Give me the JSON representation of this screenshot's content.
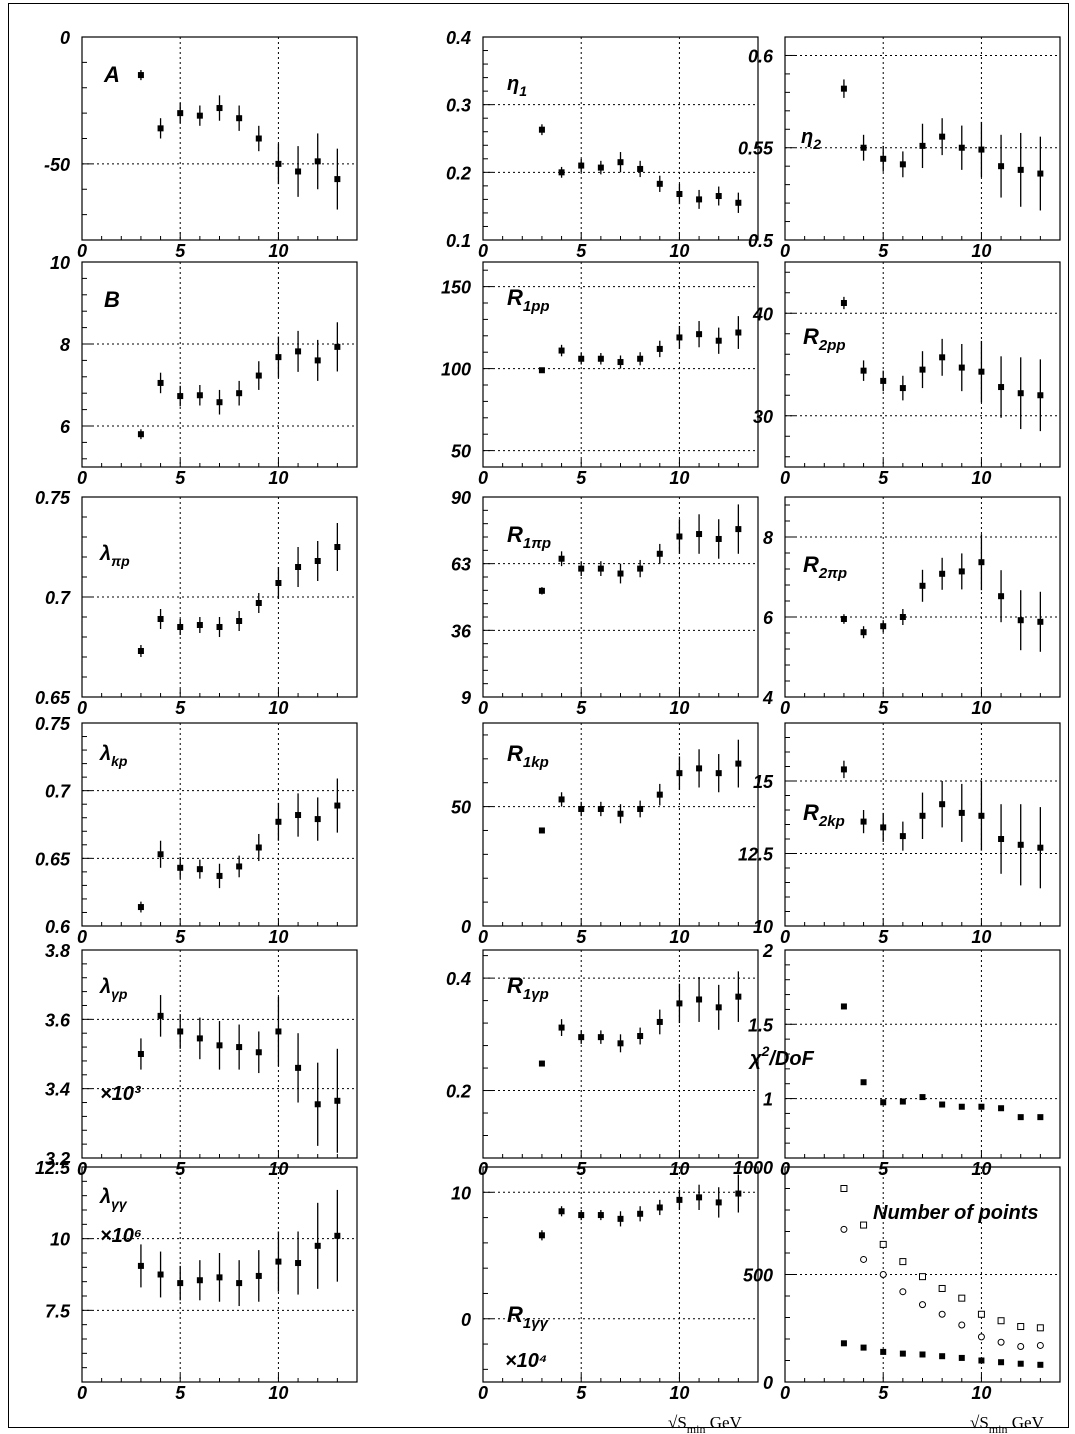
{
  "x_axis": {
    "range": [
      0,
      14
    ],
    "ticks": [
      0,
      5,
      10
    ],
    "label": "√S_min GeV"
  },
  "chart_data": [
    {
      "type": "scatter",
      "label": "A",
      "ylim": [
        -80,
        0
      ],
      "yticks": [
        "0",
        "-50"
      ],
      "ytick_values": [
        0,
        -50
      ],
      "x": [
        3,
        4,
        5,
        6,
        7,
        8,
        9,
        10,
        11,
        12,
        13
      ],
      "y": [
        -15,
        -36,
        -30,
        -31,
        -28,
        -32,
        -40,
        -50,
        -53,
        -49,
        -56
      ],
      "err": [
        2,
        4,
        4,
        4,
        5,
        5,
        5,
        8,
        10,
        11,
        12
      ]
    },
    {
      "type": "scatter",
      "label": "η1",
      "ylim": [
        0.1,
        0.4
      ],
      "yticks": [
        "0.4",
        "0.3",
        "0.2",
        "0.1"
      ],
      "ytick_values": [
        0.4,
        0.3,
        0.2,
        0.1
      ],
      "x": [
        3,
        4,
        5,
        6,
        7,
        8,
        9,
        10,
        11,
        12,
        13
      ],
      "y": [
        0.263,
        0.2,
        0.21,
        0.207,
        0.215,
        0.205,
        0.183,
        0.168,
        0.16,
        0.165,
        0.155
      ],
      "err": [
        0.008,
        0.008,
        0.01,
        0.01,
        0.015,
        0.012,
        0.012,
        0.015,
        0.014,
        0.014,
        0.015
      ]
    },
    {
      "type": "scatter",
      "label": "η2",
      "ylim": [
        0.5,
        0.61
      ],
      "yticks": [
        "0.6",
        "0.55",
        "0.5"
      ],
      "ytick_values": [
        0.6,
        0.55,
        0.5
      ],
      "x": [
        3,
        4,
        5,
        6,
        7,
        8,
        9,
        10,
        11,
        12,
        13
      ],
      "y": [
        0.582,
        0.55,
        0.544,
        0.541,
        0.551,
        0.556,
        0.55,
        0.549,
        0.54,
        0.538,
        0.536
      ],
      "err": [
        0.005,
        0.007,
        0.007,
        0.007,
        0.012,
        0.01,
        0.012,
        0.015,
        0.017,
        0.02,
        0.02
      ]
    },
    {
      "type": "scatter",
      "label": "B",
      "ylim": [
        5,
        10
      ],
      "yticks": [
        "10",
        "8",
        "6"
      ],
      "ytick_values": [
        10,
        8,
        6
      ],
      "x": [
        3,
        4,
        5,
        6,
        7,
        8,
        9,
        10,
        11,
        12,
        13
      ],
      "y": [
        5.8,
        7.05,
        6.73,
        6.75,
        6.58,
        6.8,
        7.23,
        7.68,
        7.82,
        7.6,
        7.93
      ],
      "err": [
        0.12,
        0.25,
        0.25,
        0.25,
        0.3,
        0.3,
        0.35,
        0.5,
        0.5,
        0.5,
        0.6
      ]
    },
    {
      "type": "scatter",
      "label": "R1pp",
      "ylim": [
        40,
        165
      ],
      "yticks": [
        "150",
        "100",
        "50"
      ],
      "ytick_values": [
        150,
        100,
        50
      ],
      "x": [
        3,
        4,
        5,
        6,
        7,
        8,
        9,
        10,
        11,
        12,
        13
      ],
      "y": [
        99,
        111,
        106,
        106,
        104,
        106,
        112,
        119,
        121,
        117,
        122
      ],
      "err": [
        1.5,
        3.5,
        3.5,
        3.5,
        4,
        4,
        5,
        7,
        8,
        8,
        10
      ]
    },
    {
      "type": "scatter",
      "label": "R2pp",
      "ylim": [
        25,
        45
      ],
      "yticks": [
        "40",
        "30"
      ],
      "ytick_values": [
        40,
        30
      ],
      "x": [
        3,
        4,
        5,
        6,
        7,
        8,
        9,
        10,
        11,
        12,
        13
      ],
      "y": [
        41,
        34.4,
        33.4,
        32.7,
        34.5,
        35.7,
        34.7,
        34.3,
        32.8,
        32.2,
        32
      ],
      "err": [
        0.6,
        1,
        1,
        1.2,
        1.8,
        1.8,
        2.3,
        3,
        3,
        3.5,
        3.5
      ]
    },
    {
      "type": "scatter",
      "label": "λπp",
      "ylim": [
        0.65,
        0.75
      ],
      "yticks": [
        "0.75",
        "0.7",
        "0.65"
      ],
      "ytick_values": [
        0.75,
        0.7,
        0.65
      ],
      "x": [
        3,
        4,
        5,
        6,
        7,
        8,
        9,
        10,
        11,
        12,
        13
      ],
      "y": [
        0.673,
        0.689,
        0.685,
        0.686,
        0.685,
        0.688,
        0.697,
        0.707,
        0.715,
        0.718,
        0.725
      ],
      "err": [
        0.003,
        0.005,
        0.004,
        0.004,
        0.005,
        0.005,
        0.005,
        0.008,
        0.01,
        0.01,
        0.012
      ]
    },
    {
      "type": "scatter",
      "label": "R1πp",
      "ylim": [
        9,
        90
      ],
      "yticks": [
        "90",
        "63",
        "36",
        "9"
      ],
      "ytick_values": [
        90,
        63,
        36,
        9
      ],
      "x": [
        3,
        4,
        5,
        6,
        7,
        8,
        9,
        10,
        11,
        12,
        13
      ],
      "y": [
        52,
        65,
        61,
        61,
        59,
        61,
        67,
        74,
        75,
        73,
        77
      ],
      "err": [
        1.5,
        3,
        3,
        3,
        4,
        3.5,
        4,
        7,
        8,
        8,
        10
      ]
    },
    {
      "type": "scatter",
      "label": "R2πp",
      "ylim": [
        4,
        9
      ],
      "yticks": [
        "8",
        "6",
        "4"
      ],
      "ytick_values": [
        8,
        6,
        4
      ],
      "x": [
        3,
        4,
        5,
        6,
        7,
        8,
        9,
        10,
        11,
        12,
        13
      ],
      "y": [
        5.95,
        5.62,
        5.77,
        6.0,
        6.78,
        7.08,
        7.14,
        7.37,
        6.52,
        5.92,
        5.88
      ],
      "err": [
        0.12,
        0.15,
        0.15,
        0.2,
        0.4,
        0.4,
        0.45,
        0.7,
        0.65,
        0.75,
        0.75
      ]
    },
    {
      "type": "scatter",
      "label": "λkp",
      "ylim": [
        0.6,
        0.75
      ],
      "yticks": [
        "0.75",
        "0.7",
        "0.65",
        "0.6"
      ],
      "ytick_values": [
        0.75,
        0.7,
        0.65,
        0.6
      ],
      "x": [
        3,
        4,
        5,
        6,
        7,
        8,
        9,
        10,
        11,
        12,
        13
      ],
      "y": [
        0.614,
        0.653,
        0.643,
        0.642,
        0.637,
        0.644,
        0.658,
        0.677,
        0.682,
        0.679,
        0.689
      ],
      "err": [
        0.004,
        0.01,
        0.008,
        0.007,
        0.009,
        0.008,
        0.01,
        0.014,
        0.016,
        0.016,
        0.02
      ]
    },
    {
      "type": "scatter",
      "label": "R1kp",
      "ylim": [
        0,
        85
      ],
      "yticks": [
        "50",
        "0"
      ],
      "ytick_values": [
        50,
        0
      ],
      "x": [
        3,
        4,
        5,
        6,
        7,
        8,
        9,
        10,
        11,
        12,
        13
      ],
      "y": [
        40,
        53,
        49,
        49,
        47,
        49,
        55,
        64,
        66,
        64,
        68
      ],
      "err": [
        1,
        3,
        3,
        3,
        4,
        3.5,
        4.5,
        7,
        8,
        8,
        10
      ]
    },
    {
      "type": "scatter",
      "label": "R2kp",
      "ylim": [
        10,
        17
      ],
      "yticks": [
        "15",
        "12.5",
        "10"
      ],
      "ytick_values": [
        15,
        12.5,
        10
      ],
      "x": [
        3,
        4,
        5,
        6,
        7,
        8,
        9,
        10,
        11,
        12,
        13
      ],
      "y": [
        15.4,
        13.6,
        13.4,
        13.1,
        13.8,
        14.2,
        13.9,
        13.8,
        13,
        12.8,
        12.7
      ],
      "err": [
        0.3,
        0.4,
        0.5,
        0.5,
        0.8,
        0.8,
        1,
        1.2,
        1.2,
        1.4,
        1.4
      ]
    },
    {
      "type": "scatter",
      "label": "λγp",
      "annotation": "×10³",
      "ylim": [
        3.2,
        3.8
      ],
      "yticks": [
        "3.8",
        "3.6",
        "3.4",
        "3.2"
      ],
      "ytick_values": [
        3.8,
        3.6,
        3.4,
        3.2
      ],
      "x": [
        3,
        4,
        5,
        6,
        7,
        8,
        9,
        10,
        11,
        12,
        13
      ],
      "y": [
        3.5,
        3.61,
        3.565,
        3.545,
        3.525,
        3.52,
        3.505,
        3.565,
        3.46,
        3.355,
        3.365
      ],
      "err": [
        0.045,
        0.06,
        0.05,
        0.06,
        0.07,
        0.065,
        0.06,
        0.1,
        0.1,
        0.12,
        0.15
      ]
    },
    {
      "type": "scatter",
      "label": "R1γp",
      "ylim": [
        0.08,
        0.45
      ],
      "yticks": [
        "0.4",
        "0.2"
      ],
      "ytick_values": [
        0.4,
        0.2
      ],
      "x": [
        3,
        4,
        5,
        6,
        7,
        8,
        9,
        10,
        11,
        12,
        13
      ],
      "y": [
        0.248,
        0.312,
        0.295,
        0.295,
        0.284,
        0.297,
        0.322,
        0.355,
        0.362,
        0.348,
        0.367
      ],
      "err": [
        0.005,
        0.015,
        0.012,
        0.012,
        0.016,
        0.015,
        0.022,
        0.035,
        0.04,
        0.04,
        0.045
      ]
    },
    {
      "type": "scatter",
      "label": "χ²/DoF",
      "ylim": [
        0.6,
        2
      ],
      "yticks": [
        "2",
        "1.5",
        "1"
      ],
      "ytick_values": [
        2,
        1.5,
        1
      ],
      "x": [
        3,
        4,
        5,
        6,
        7,
        8,
        9,
        10,
        11,
        12,
        13
      ],
      "y": [
        1.62,
        1.11,
        0.975,
        0.98,
        1.01,
        0.96,
        0.945,
        0.945,
        0.935,
        0.875,
        0.875
      ],
      "err": [
        0,
        0,
        0,
        0,
        0,
        0,
        0,
        0,
        0,
        0,
        0
      ]
    },
    {
      "type": "scatter",
      "label": "λγγ",
      "annotation": "×10⁶",
      "ylim": [
        5,
        12.5
      ],
      "yticks": [
        "12.5",
        "10",
        "7.5"
      ],
      "ytick_values": [
        12.5,
        10,
        7.5
      ],
      "x": [
        3,
        4,
        5,
        6,
        7,
        8,
        9,
        10,
        11,
        12,
        13
      ],
      "y": [
        9.05,
        8.75,
        8.45,
        8.55,
        8.65,
        8.45,
        8.7,
        9.2,
        9.15,
        9.75,
        10.1
      ],
      "err": [
        0.75,
        0.8,
        0.6,
        0.7,
        0.85,
        0.8,
        0.9,
        1.05,
        1.1,
        1.5,
        1.6
      ]
    },
    {
      "type": "scatter",
      "label": "R1γγ",
      "annotation": "×10⁴",
      "ylim": [
        -5,
        12
      ],
      "yticks": [
        "10",
        "0"
      ],
      "ytick_values": [
        10,
        0
      ],
      "x": [
        3,
        4,
        5,
        6,
        7,
        8,
        9,
        10,
        11,
        12,
        13
      ],
      "y": [
        6.6,
        8.5,
        8.2,
        8.2,
        7.9,
        8.3,
        8.8,
        9.4,
        9.6,
        9.2,
        9.9
      ],
      "err": [
        0.4,
        0.4,
        0.4,
        0.4,
        0.6,
        0.6,
        0.6,
        0.8,
        1,
        1.2,
        1.5
      ]
    },
    {
      "type": "scatter",
      "label": "Number of points",
      "ylim": [
        0,
        1000
      ],
      "yticks": [
        "1000",
        "500",
        "0"
      ],
      "ytick_values": [
        1000,
        500,
        0
      ],
      "series": [
        {
          "marker": "open-square",
          "x": [
            3,
            4,
            5,
            6,
            7,
            8,
            9,
            10,
            11,
            12,
            13
          ],
          "y": [
            900,
            730,
            640,
            560,
            490,
            435,
            390,
            315,
            285,
            258,
            252
          ]
        },
        {
          "marker": "open-circle",
          "x": [
            3,
            4,
            5,
            6,
            7,
            8,
            9,
            10,
            11,
            12,
            13
          ],
          "y": [
            710,
            570,
            500,
            420,
            360,
            315,
            265,
            210,
            185,
            165,
            170
          ]
        },
        {
          "marker": "filled-square",
          "x": [
            3,
            4,
            5,
            6,
            7,
            8,
            9,
            10,
            11,
            12,
            13
          ],
          "y": [
            180,
            160,
            140,
            132,
            128,
            120,
            112,
            100,
            92,
            85,
            80
          ]
        }
      ]
    }
  ]
}
